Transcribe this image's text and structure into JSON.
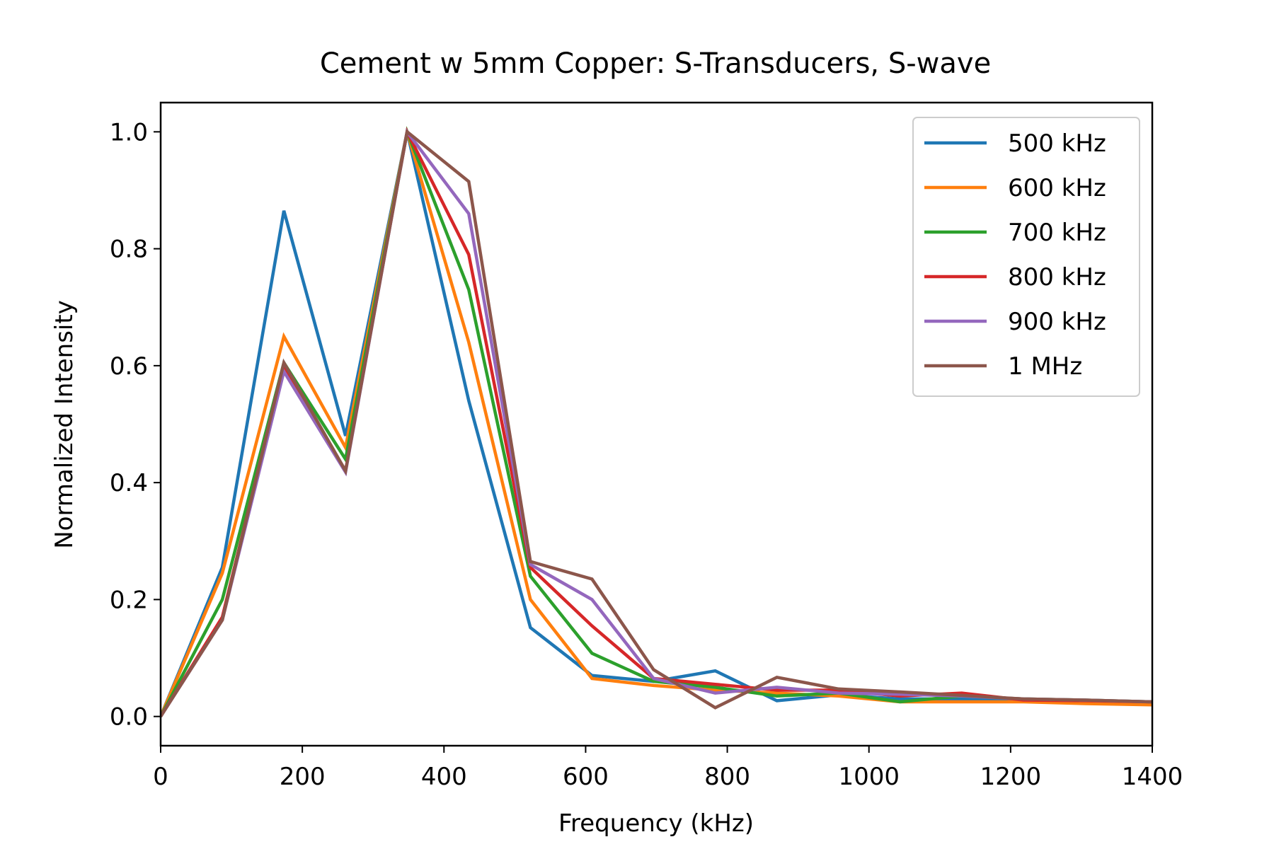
{
  "chart_data": {
    "type": "line",
    "title": "Cement w 5mm Copper: S-Transducers, S-wave",
    "xlabel": "Frequency (kHz)",
    "ylabel": "Normalized Intensity",
    "xlim": [
      0,
      1400
    ],
    "ylim": [
      -0.05,
      1.05
    ],
    "xticks": [
      0,
      200,
      400,
      600,
      800,
      1000,
      1200,
      1400
    ],
    "xtick_labels": [
      "0",
      "200",
      "400",
      "600",
      "800",
      "1000",
      "1200",
      "1400"
    ],
    "yticks": [
      0.0,
      0.2,
      0.4,
      0.6,
      0.8,
      1.0
    ],
    "ytick_labels": [
      "0.0",
      "0.2",
      "0.4",
      "0.6",
      "0.8",
      "1.0"
    ],
    "grid": false,
    "legend_position": "top-right",
    "x": [
      0,
      87,
      174,
      261,
      348,
      435,
      522,
      609,
      696,
      783,
      870,
      957,
      1044,
      1131,
      1218,
      1305,
      1400
    ],
    "series": [
      {
        "name": "500 kHz",
        "color": "#1f77b4",
        "values": [
          0.0,
          0.255,
          0.865,
          0.48,
          1.0,
          0.54,
          0.152,
          0.07,
          0.06,
          0.078,
          0.027,
          0.037,
          0.03,
          0.03,
          0.028,
          0.025,
          0.022
        ]
      },
      {
        "name": "600 kHz",
        "color": "#ff7f0e",
        "values": [
          0.0,
          0.245,
          0.65,
          0.46,
          1.0,
          0.64,
          0.2,
          0.065,
          0.053,
          0.045,
          0.04,
          0.035,
          0.025,
          0.025,
          0.025,
          0.022,
          0.02
        ]
      },
      {
        "name": "700 kHz",
        "color": "#2ca02c",
        "values": [
          0.0,
          0.2,
          0.605,
          0.44,
          1.0,
          0.73,
          0.24,
          0.108,
          0.06,
          0.05,
          0.035,
          0.04,
          0.025,
          0.035,
          0.03,
          0.028,
          0.025
        ]
      },
      {
        "name": "800 kHz",
        "color": "#d62728",
        "values": [
          0.0,
          0.17,
          0.6,
          0.42,
          1.0,
          0.79,
          0.255,
          0.155,
          0.065,
          0.055,
          0.045,
          0.045,
          0.035,
          0.04,
          0.028,
          0.027,
          0.025
        ]
      },
      {
        "name": "900 kHz",
        "color": "#9467bd",
        "values": [
          0.0,
          0.165,
          0.59,
          0.418,
          1.0,
          0.86,
          0.26,
          0.2,
          0.065,
          0.04,
          0.05,
          0.04,
          0.038,
          0.035,
          0.03,
          0.028,
          0.025
        ]
      },
      {
        "name": "1 MHz",
        "color": "#8c564b",
        "values": [
          0.0,
          0.165,
          0.605,
          0.42,
          1.0,
          0.915,
          0.265,
          0.235,
          0.08,
          0.015,
          0.067,
          0.047,
          0.042,
          0.036,
          0.03,
          0.028,
          0.025
        ]
      }
    ]
  }
}
